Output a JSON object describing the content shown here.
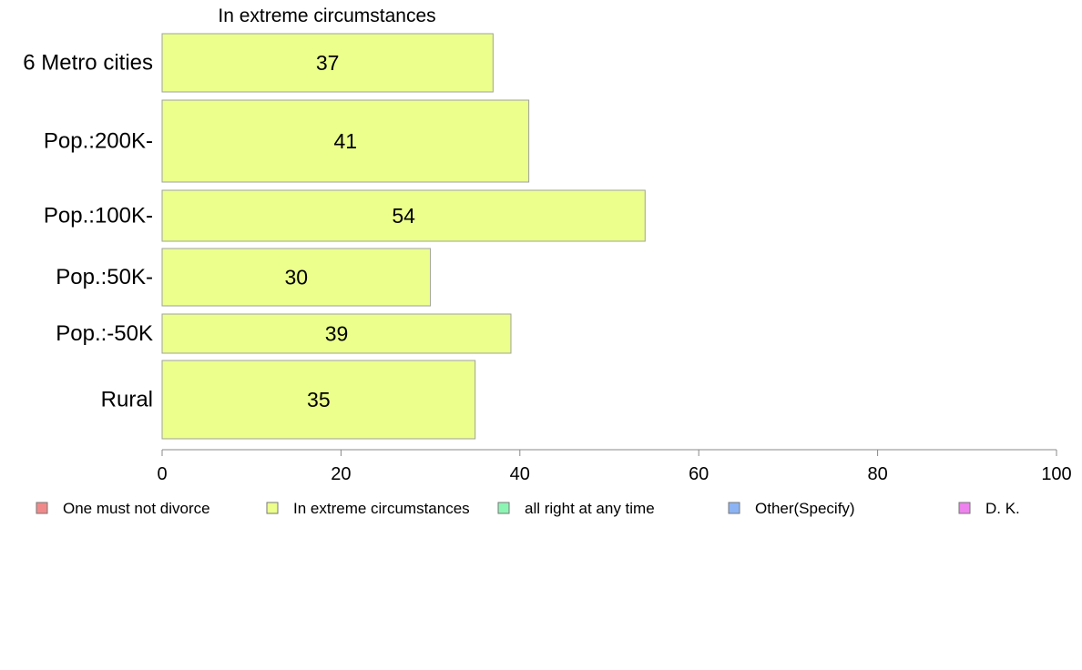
{
  "chart_data": {
    "type": "bar",
    "orientation": "horizontal",
    "title": "In extreme circumstances",
    "categories": [
      "6 Metro cities",
      "Pop.:200K-",
      "Pop.:100K-",
      "Pop.:50K-",
      "Pop.:-50K",
      "Rural"
    ],
    "series": [
      {
        "name": "In extreme circumstances",
        "values": [
          37,
          41,
          54,
          30,
          39,
          35
        ],
        "color": "#ecff8c"
      }
    ],
    "data_labels": [
      "37",
      "41",
      "54",
      "30",
      "39",
      "35"
    ],
    "xlim": [
      0,
      100
    ],
    "x_ticks": [
      0,
      20,
      40,
      60,
      80,
      100
    ],
    "x_tick_labels": [
      "0",
      "20",
      "40",
      "60",
      "80",
      "100"
    ],
    "grid": false,
    "legend": {
      "placement": "bottom",
      "entries": [
        {
          "label": "One must not divorce",
          "color": "#f08a8a"
        },
        {
          "label": "In extreme circumstances",
          "color": "#ecff8c"
        },
        {
          "label": "all right at any time",
          "color": "#8cf5b4"
        },
        {
          "label": "Other(Specify)",
          "color": "#8cb4f5"
        },
        {
          "label": "D. K.",
          "color": "#ee82ee"
        }
      ]
    }
  }
}
